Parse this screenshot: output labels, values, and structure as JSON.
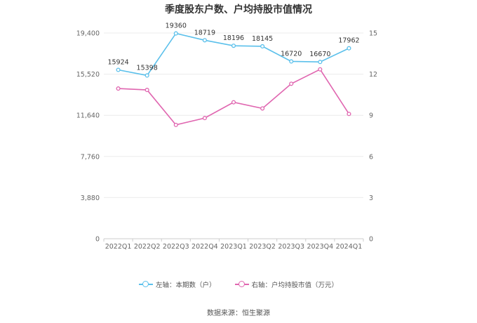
{
  "chart_data": {
    "type": "line",
    "title": "季度股东户数、户均持股市值情况",
    "categories": [
      "2022Q1",
      "2022Q2",
      "2022Q3",
      "2022Q4",
      "2023Q1",
      "2023Q2",
      "2023Q3",
      "2023Q4",
      "2024Q1"
    ],
    "left_axis": {
      "ticks": [
        "0",
        "3,880",
        "7,760",
        "11,640",
        "15,520",
        "19,400"
      ],
      "ylim": [
        0,
        19400
      ]
    },
    "right_axis": {
      "ticks": [
        "0",
        "3",
        "6",
        "9",
        "12",
        "15"
      ],
      "ylim": [
        0,
        15
      ]
    },
    "series": [
      {
        "name": "左轴：本期数（户）",
        "axis": "left",
        "color": "#5bc0eb",
        "values": [
          15924,
          15398,
          19360,
          18719,
          18196,
          18145,
          16720,
          16670,
          17962
        ],
        "labels": [
          "15924",
          "15398",
          "19360",
          "18719",
          "18196",
          "18145",
          "16720",
          "16670",
          "17962"
        ]
      },
      {
        "name": "右轴：户均持股市值（万元）",
        "axis": "right",
        "color": "#e066b0",
        "values": [
          10.95,
          10.85,
          8.3,
          8.8,
          9.95,
          9.5,
          11.3,
          12.35,
          9.1
        ]
      }
    ],
    "grid": true,
    "legend": "bottom-center"
  },
  "source": "数据来源：恒生聚源"
}
